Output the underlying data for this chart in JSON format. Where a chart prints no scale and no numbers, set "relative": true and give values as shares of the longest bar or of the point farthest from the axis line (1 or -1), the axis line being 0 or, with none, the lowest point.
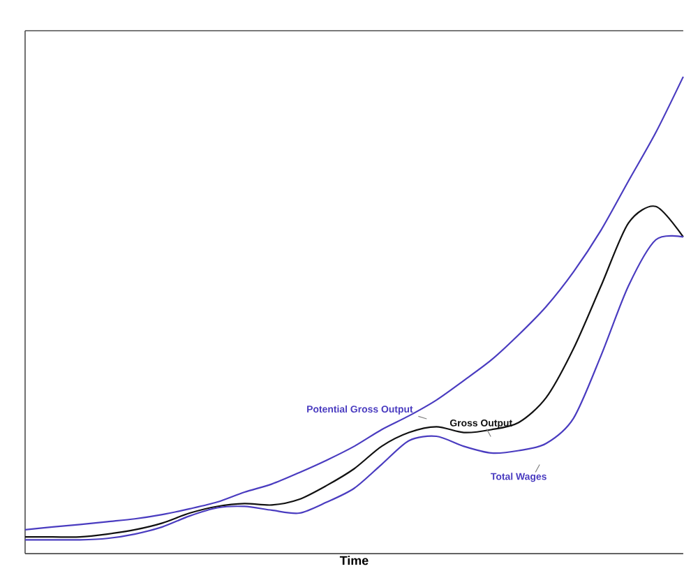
{
  "chart_data": {
    "type": "line",
    "relative": true,
    "xlabel": "Time",
    "categories": [
      null,
      null,
      null,
      null,
      null,
      null,
      null,
      null,
      null,
      null,
      null,
      null,
      null,
      null,
      null,
      null,
      null,
      null,
      null,
      null,
      null,
      null,
      null,
      null,
      null
    ],
    "series": [
      {
        "name": "Potential Gross Output",
        "color": "#4a3cc0",
        "values": [
          0.05,
          0.056,
          0.061,
          0.067,
          0.073,
          0.082,
          0.094,
          0.108,
          0.129,
          0.146,
          0.17,
          0.196,
          0.225,
          0.26,
          0.289,
          0.322,
          0.363,
          0.406,
          0.459,
          0.518,
          0.591,
          0.678,
          0.781,
          0.883,
          1
        ]
      },
      {
        "name": "Gross Output",
        "color": "#111111",
        "values": [
          0.035,
          0.035,
          0.035,
          0.041,
          0.05,
          0.064,
          0.085,
          0.099,
          0.105,
          0.102,
          0.114,
          0.143,
          0.178,
          0.225,
          0.254,
          0.266,
          0.254,
          0.26,
          0.275,
          0.327,
          0.43,
          0.561,
          0.693,
          0.728,
          0.664
        ]
      },
      {
        "name": "Total Wages",
        "color": "#4a3cc0",
        "values": [
          0.029,
          0.029,
          0.029,
          0.032,
          0.041,
          0.056,
          0.079,
          0.096,
          0.099,
          0.091,
          0.085,
          0.108,
          0.137,
          0.187,
          0.237,
          0.246,
          0.225,
          0.211,
          0.216,
          0.231,
          0.284,
          0.415,
          0.561,
          0.658,
          0.664
        ]
      }
    ],
    "legend": false,
    "line_style": "solid",
    "marker": "none"
  }
}
